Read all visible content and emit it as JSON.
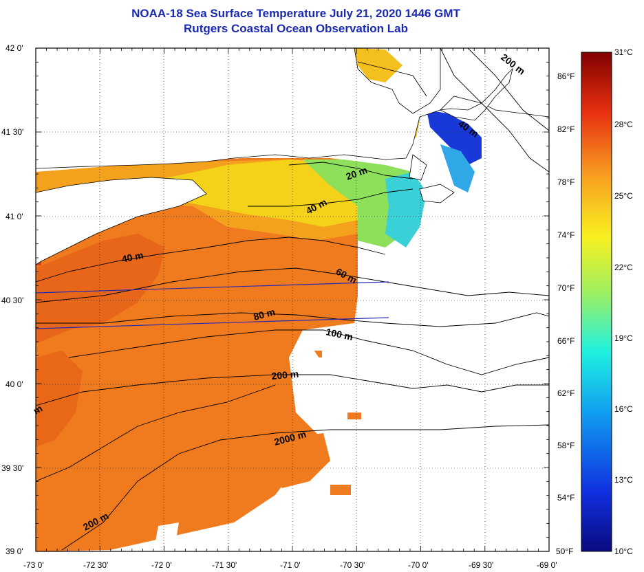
{
  "title": {
    "line1": "NOAA-18 Sea Surface Temperature July 21, 2020 1446 GMT",
    "line2": "Rutgers Coastal Ocean Observation Lab"
  },
  "axes": {
    "lat_labels": [
      "42 0'",
      "41 30'",
      "41 0'",
      "40 30'",
      "40 0'",
      "39 30'",
      "39 0'"
    ],
    "lon_labels": [
      "-73 0'",
      "-72 30'",
      "-72 0'",
      "-71 30'",
      "-71 0'",
      "-70 30'",
      "-70 0'",
      "-69 30'",
      "-69 0'"
    ]
  },
  "colorbar": {
    "celsius": [
      "31°C",
      "28°C",
      "25°C",
      "22°C",
      "19°C",
      "16°C",
      "13°C",
      "10°C"
    ],
    "fahrenheit": [
      "86°F",
      "82°F",
      "78°F",
      "74°F",
      "70°F",
      "66°F",
      "62°F",
      "58°F",
      "54°F",
      "50°F"
    ]
  },
  "contour_labels": {
    "c20": "20 m",
    "c40a": "40 m",
    "c40b": "40 m",
    "c40c": "40 m",
    "c60": "60 m",
    "c80": "80 m",
    "c100": "100 m",
    "c200a": "200 m",
    "c200b": "200 m",
    "c200c": "200 m",
    "c2000": "2000 m",
    "cedge": "m"
  },
  "colors": {
    "title": "#1a2ab0",
    "warm": "#f07a1e",
    "warm_dark": "#e8661a",
    "yellow": "#f4d21a",
    "green": "#8ee05a",
    "cyan": "#3ad0d8",
    "blue": "#1838d8"
  }
}
